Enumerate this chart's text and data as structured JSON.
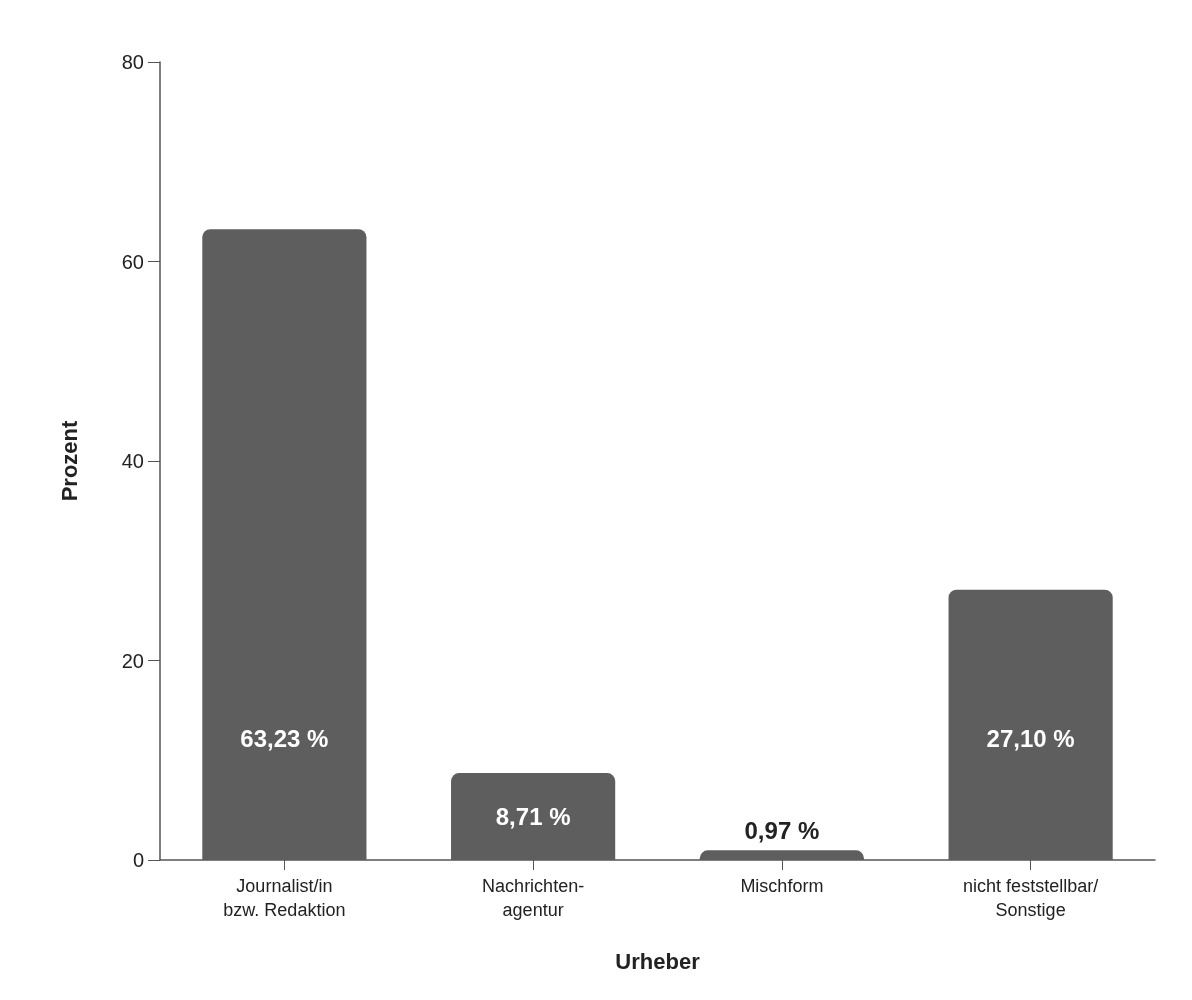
{
  "chart_data": {
    "type": "bar",
    "xlabel": "Urheber",
    "ylabel": "Prozent",
    "categories": [
      "Journalist/in\nbzw. Redaktion",
      "Nachrichten-\nagentur",
      "Mischform",
      "nicht feststellbar/\nSonstige"
    ],
    "values": [
      63.23,
      8.71,
      0.97,
      27.1
    ],
    "value_labels": [
      "63,23 %",
      "8,71 %",
      "0,97 %",
      "27,10 %"
    ],
    "color": "#5e5e5e",
    "ylim": [
      0,
      80
    ],
    "yticks": [
      0,
      20,
      40,
      60,
      80
    ],
    "grid": false
  }
}
